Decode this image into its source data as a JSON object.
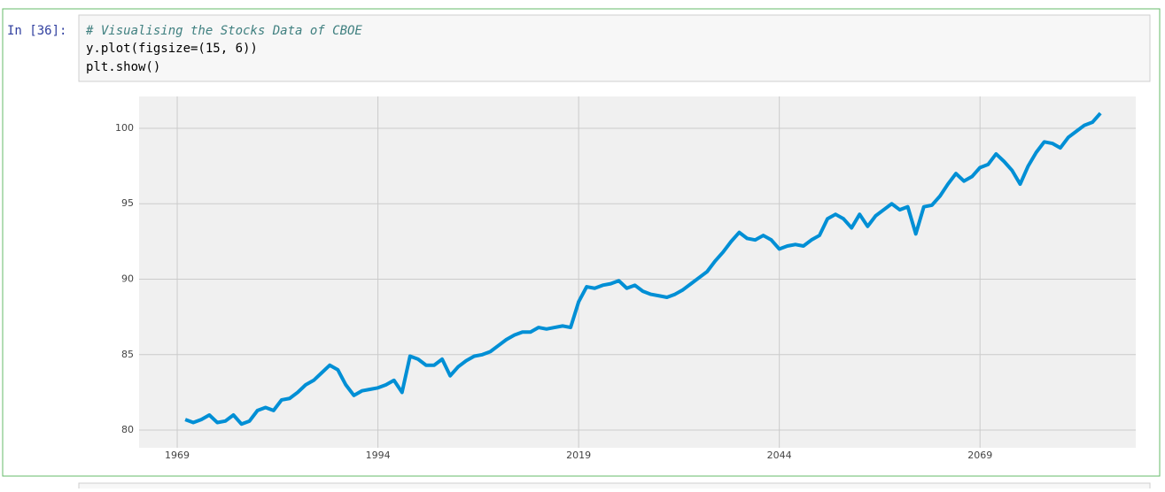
{
  "cell": {
    "prompt": "In [36]:",
    "code_lines": [
      "# Visualising the Stocks Data of CBOE",
      "y.plot(figsize=(15, 6))",
      "plt.show()"
    ]
  },
  "chart_data": {
    "type": "line",
    "x": [
      1970,
      1971,
      1972,
      1973,
      1974,
      1975,
      1976,
      1977,
      1978,
      1979,
      1980,
      1981,
      1982,
      1983,
      1984,
      1985,
      1986,
      1987,
      1988,
      1989,
      1990,
      1991,
      1992,
      1993,
      1994,
      1995,
      1996,
      1997,
      1998,
      1999,
      2000,
      2001,
      2002,
      2003,
      2004,
      2005,
      2006,
      2007,
      2008,
      2009,
      2010,
      2011,
      2012,
      2013,
      2014,
      2015,
      2016,
      2017,
      2018,
      2019,
      2020,
      2021,
      2022,
      2023,
      2024,
      2025,
      2026,
      2027,
      2028,
      2029,
      2030,
      2031,
      2032,
      2033,
      2034,
      2035,
      2036,
      2037,
      2038,
      2039,
      2040,
      2041,
      2042,
      2043,
      2044,
      2045,
      2046,
      2047,
      2048,
      2049,
      2050,
      2051,
      2052,
      2053,
      2054,
      2055,
      2056,
      2057,
      2058,
      2059,
      2060,
      2061,
      2062,
      2063,
      2064,
      2065,
      2066,
      2067,
      2068,
      2069,
      2070,
      2071,
      2072,
      2073,
      2074,
      2075,
      2076,
      2077,
      2078,
      2079,
      2080,
      2081,
      2082,
      2083,
      2084
    ],
    "series": [
      {
        "color": "#008fd5",
        "values": [
          80.7,
          80.5,
          80.7,
          81.0,
          80.5,
          80.6,
          81.0,
          80.4,
          80.6,
          81.3,
          81.5,
          81.3,
          82.0,
          82.1,
          82.5,
          83.0,
          83.3,
          83.8,
          84.3,
          84.0,
          83.0,
          82.3,
          82.6,
          82.7,
          82.8,
          83.0,
          83.3,
          82.5,
          84.9,
          84.7,
          84.3,
          84.3,
          84.7,
          83.6,
          84.2,
          84.6,
          84.9,
          85.0,
          85.2,
          85.6,
          86.0,
          86.3,
          86.5,
          86.5,
          86.8,
          86.7,
          86.8,
          86.9,
          86.8,
          88.5,
          89.5,
          89.4,
          89.6,
          89.7,
          89.9,
          89.4,
          89.6,
          89.2,
          89.0,
          88.9,
          88.8,
          89.0,
          89.3,
          89.7,
          90.1,
          90.5,
          91.2,
          91.8,
          92.5,
          93.1,
          92.7,
          92.6,
          92.9,
          92.6,
          92.0,
          92.2,
          92.3,
          92.2,
          92.6,
          92.9,
          94.0,
          94.3,
          94.0,
          93.4,
          94.3,
          93.5,
          94.2,
          94.6,
          95.0,
          94.6,
          94.8,
          93.0,
          94.8,
          94.9,
          95.5,
          96.3,
          97.0,
          96.5,
          96.8,
          97.4,
          97.6,
          98.3,
          97.8,
          97.2,
          96.3,
          97.5,
          98.4,
          99.1,
          99.0,
          98.7,
          99.4,
          99.8,
          100.2,
          100.4,
          101.0
        ]
      }
    ],
    "xlim": [
      1964.25,
      2088.4
    ],
    "ylim": [
      78.83,
      102.11
    ],
    "xticks": [
      1969,
      1994,
      2019,
      2044,
      2069
    ],
    "yticks": [
      80,
      85,
      90,
      95,
      100
    ],
    "grid": true
  }
}
